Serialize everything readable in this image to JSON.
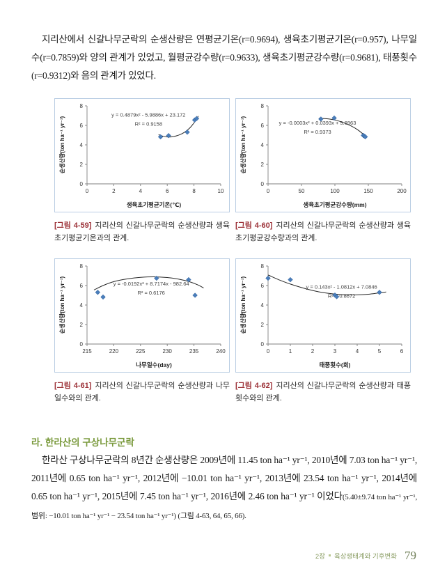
{
  "page": {
    "paragraph1": "지리산에서 신갈나무군락의 순생산량은 연평균기온(r=0.9694), 생육초기평균기온(r=0.957), 나무일수(r=0.7859)와 양의 관계가 있었고, 월평균강수량(r=0.9633), 생육초기평균강수량(r=0.9681), 태풍횟수(r=0.9312)와 음의 관계가 있었다.",
    "section_heading": "라. 한라산의 구상나무군락",
    "paragraph2_main": "한라산 구상나무군락의 8년간 순생산량은 2009년에 11.45 ton ha⁻¹ yr⁻¹, 2010년에 7.03 ton ha⁻¹ yr⁻¹, 2011년에 0.65 ton ha⁻¹ yr⁻¹, 2012년에 −10.01 ton ha⁻¹ yr⁻¹, 2013년에 23.54 ton ha⁻¹ yr⁻¹, 2014년에 0.65 ton ha⁻¹ yr⁻¹, 2015년에 7.45 ton ha⁻¹ yr⁻¹, 2016년에 2.46 ton ha⁻¹ yr⁻¹ 이었다",
    "paragraph2_note": "(5.40±9.74 ton ha⁻¹ yr⁻¹, 범위: −10.01 ton ha⁻¹ yr⁻¹ − 23.54 ton ha⁻¹ yr⁻¹) (그림 4-63, 64, 65, 66).",
    "footer": {
      "chapter": "2장",
      "section": "육상생태계와 기후변화",
      "page_number": "79"
    }
  },
  "colors": {
    "caption_label": "#9c3137",
    "section_heading": "#7a9a3d",
    "footer_text": "#8a9d63",
    "chart_border": "#b9cde3",
    "point_fill": "#4a7ebb",
    "point_stroke": "#2f5d97",
    "axis": "#7f7f7f",
    "trend_line": "#262626",
    "chart_text": "#333333"
  },
  "chart_data": [
    {
      "type": "scatter",
      "figure_label": "[그림 4-59]",
      "caption": "지리산의 신갈나무군락의 순생산량과 생육초기평균기온과의 관계.",
      "equation": "y = 0.4879x² - 5.9886x + 23.172",
      "r_squared": "R² = 0.9158",
      "xlabel": "생육초기평균기온(℃)",
      "ylabel": "순생산량(ton ha⁻¹  yr⁻¹)",
      "xlim": [
        0,
        10
      ],
      "xticks": [
        0,
        2,
        4,
        6,
        8,
        10
      ],
      "ylim": [
        0,
        8
      ],
      "yticks": [
        0,
        2,
        4,
        6,
        8
      ],
      "points": [
        [
          5.5,
          4.82
        ],
        [
          6.1,
          4.95
        ],
        [
          7.5,
          5.3
        ],
        [
          8.05,
          6.55
        ],
        [
          8.2,
          6.7
        ]
      ],
      "trend": [
        [
          5.35,
          5.05
        ],
        [
          5.7,
          4.88
        ],
        [
          6.1,
          4.8
        ],
        [
          6.5,
          4.86
        ],
        [
          6.9,
          5.02
        ],
        [
          7.3,
          5.3
        ],
        [
          7.7,
          5.75
        ],
        [
          8.0,
          6.25
        ],
        [
          8.2,
          6.62
        ],
        [
          8.32,
          6.95
        ]
      ],
      "eq_pos": [
        0.46,
        0.14
      ]
    },
    {
      "type": "scatter",
      "figure_label": "[그림 4-60]",
      "caption": "지리산의 신갈나무군락의 순생산량과 생육초기평균강수량과의 관계.",
      "equation": "y = -0.0003x² + 0.0393x + 5.6963",
      "r_squared": "R² = 0.9373",
      "xlabel": "생육초기평균강수량(mm)",
      "ylabel": "순생산량(ton ha⁻¹  yr⁻¹)",
      "xlim": [
        0,
        200
      ],
      "xticks": [
        0,
        50,
        100,
        150,
        200
      ],
      "ylim": [
        0,
        8
      ],
      "yticks": [
        0,
        2,
        4,
        6,
        8
      ],
      "points": [
        [
          79,
          6.65
        ],
        [
          99,
          6.75
        ],
        [
          142.5,
          4.97
        ],
        [
          144,
          4.9
        ],
        [
          145.5,
          4.83
        ]
      ],
      "trend": [
        [
          76,
          6.72
        ],
        [
          88,
          6.68
        ],
        [
          100,
          6.55
        ],
        [
          112,
          6.3
        ],
        [
          124,
          5.95
        ],
        [
          134,
          5.55
        ],
        [
          142,
          5.12
        ],
        [
          148,
          4.8
        ]
      ],
      "eq_pos": [
        0.37,
        0.24
      ]
    },
    {
      "type": "scatter",
      "figure_label": "[그림 4-61]",
      "caption": "지리산의 신갈나무군락의 순생산량과 나무일수와의 관계.",
      "equation": "y = -0.0192x² + 8.7174x - 982.64",
      "r_squared": "R² = 0.6176",
      "xlabel": "나무일수(day)",
      "ylabel": "순생산량(ton ha⁻¹  yr⁻¹)",
      "xlim": [
        215,
        240
      ],
      "xticks": [
        215,
        220,
        225,
        230,
        235,
        240
      ],
      "ylim": [
        0,
        8
      ],
      "yticks": [
        0,
        2,
        4,
        6,
        8
      ],
      "points": [
        [
          217,
          5.3
        ],
        [
          218,
          4.82
        ],
        [
          228,
          6.75
        ],
        [
          234,
          6.6
        ],
        [
          235.2,
          5.0
        ]
      ],
      "trend": [
        [
          216.3,
          5.55
        ],
        [
          218,
          6.0
        ],
        [
          220,
          6.4
        ],
        [
          222.5,
          6.68
        ],
        [
          225,
          6.84
        ],
        [
          227.5,
          6.89
        ],
        [
          230,
          6.82
        ],
        [
          232,
          6.67
        ],
        [
          234,
          6.42
        ],
        [
          235.8,
          6.05
        ],
        [
          236.8,
          5.75
        ]
      ],
      "eq_pos": [
        0.48,
        0.25
      ]
    },
    {
      "type": "scatter",
      "figure_label": "[그림 4-62]",
      "caption": "지리산의 신갈나무군락의 순생산량과 태풍횟수와의 관계.",
      "equation": "y = 0.143x² - 1.0812x + 7.0846",
      "r_squared": "R² = 0.8672",
      "xlabel": "태풍횟수(회)",
      "ylabel": "순생산량(ton ha⁻¹  yr⁻¹)",
      "xlim": [
        0,
        6
      ],
      "xticks": [
        0,
        1,
        2,
        3,
        4,
        5,
        6
      ],
      "ylim": [
        0,
        8
      ],
      "yticks": [
        0,
        2,
        4,
        6,
        8
      ],
      "points": [
        [
          0,
          6.75
        ],
        [
          1,
          6.6
        ],
        [
          3,
          5.02
        ],
        [
          3.08,
          4.86
        ],
        [
          5,
          5.3
        ]
      ],
      "trend": [
        [
          0,
          7.08
        ],
        [
          0.5,
          6.58
        ],
        [
          1,
          6.15
        ],
        [
          1.5,
          5.79
        ],
        [
          2,
          5.49
        ],
        [
          2.5,
          5.27
        ],
        [
          3,
          5.13
        ],
        [
          3.5,
          5.05
        ],
        [
          4,
          5.04
        ],
        [
          4.5,
          5.11
        ],
        [
          5,
          5.25
        ],
        [
          5.3,
          5.34
        ]
      ],
      "eq_pos": [
        0.55,
        0.29
      ]
    }
  ]
}
